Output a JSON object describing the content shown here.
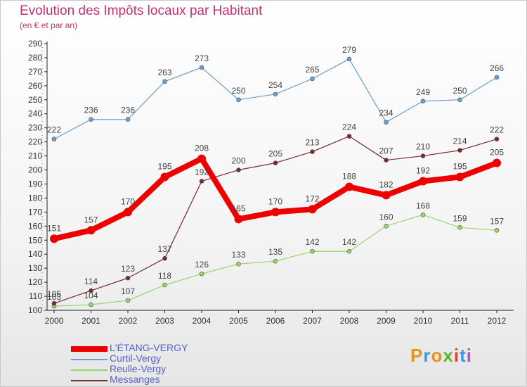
{
  "title": "Evolution des Impôts locaux par Habitant",
  "subtitle": "(en € et par an)",
  "logo": {
    "letters": [
      "P",
      "r",
      "o",
      "x",
      "i",
      "t",
      "i"
    ],
    "colors": [
      "#e8941a",
      "#3a9ad9",
      "#e8941a",
      "#5cb82a",
      "#e0403a",
      "#3a9ad9",
      "#a060c0"
    ]
  },
  "chart_data": {
    "type": "line",
    "x": [
      "2000",
      "2001",
      "2002",
      "2003",
      "2004",
      "2005",
      "2006",
      "2007",
      "2008",
      "2009",
      "2010",
      "2011",
      "2012"
    ],
    "ylim": [
      100,
      290
    ],
    "yticks": [
      100,
      110,
      120,
      130,
      140,
      150,
      160,
      170,
      180,
      190,
      200,
      210,
      220,
      230,
      240,
      250,
      260,
      270,
      280,
      290
    ],
    "grid": false,
    "legend_position": "bottom-left",
    "series": [
      {
        "name": "L'ÉTANG-VERGY",
        "color": "#ee0000",
        "width": 8,
        "values": [
          151,
          157,
          170,
          195,
          208,
          165,
          170,
          172,
          188,
          182,
          192,
          195,
          205
        ]
      },
      {
        "name": "Curtil-Vergy",
        "color": "#6a9ed0",
        "width": 1.2,
        "values": [
          222,
          236,
          236,
          263,
          273,
          250,
          254,
          265,
          279,
          234,
          249,
          250,
          266
        ]
      },
      {
        "name": "Reulle-Vergy",
        "color": "#98d468",
        "width": 1.2,
        "values": [
          103,
          104,
          107,
          118,
          126,
          133,
          135,
          142,
          142,
          160,
          168,
          159,
          157
        ]
      },
      {
        "name": "Messanges",
        "color": "#7a2a2a",
        "width": 1.2,
        "values": [
          105,
          114,
          123,
          137,
          192,
          200,
          205,
          213,
          224,
          207,
          210,
          214,
          222
        ]
      }
    ]
  }
}
